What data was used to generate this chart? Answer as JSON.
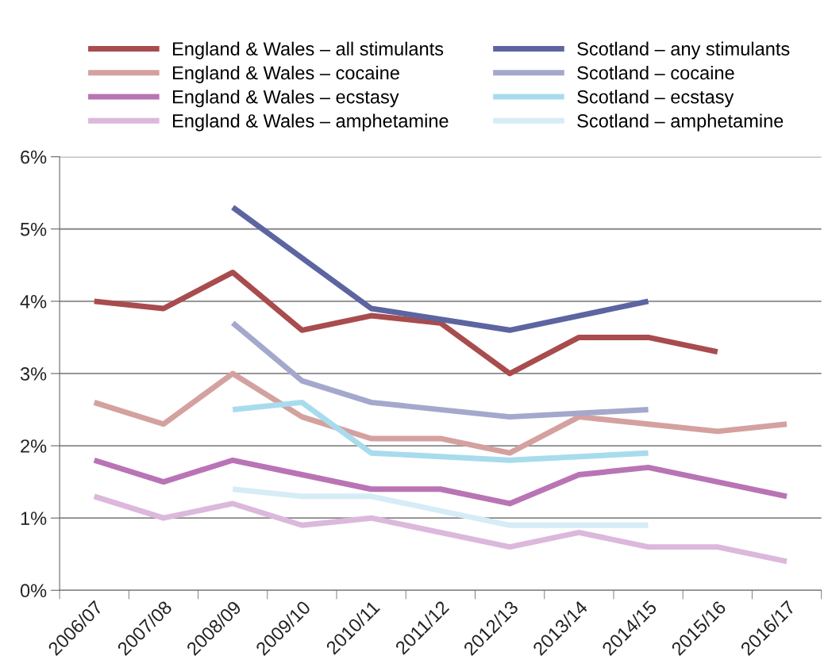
{
  "chart_data": {
    "type": "line",
    "categories": [
      "2006/07",
      "2007/08",
      "2008/09",
      "2009/10",
      "2010/11",
      "2011/12",
      "2012/13",
      "2013/14",
      "2014/15",
      "2015/16",
      "2016/17"
    ],
    "series": [
      {
        "name": "England & Wales – all stimulants",
        "color": "#a84c4e",
        "values": [
          4.0,
          3.9,
          4.4,
          3.6,
          3.8,
          3.7,
          3.0,
          3.5,
          3.5,
          3.3,
          null
        ]
      },
      {
        "name": "England & Wales – cocaine",
        "color": "#d4a19f",
        "values": [
          2.6,
          2.3,
          3.0,
          2.4,
          2.1,
          2.1,
          1.9,
          2.4,
          2.3,
          2.2,
          2.3
        ]
      },
      {
        "name": "England & Wales – ecstasy",
        "color": "#b974b5",
        "values": [
          1.8,
          1.5,
          1.8,
          1.6,
          1.4,
          1.4,
          1.2,
          1.6,
          1.7,
          1.5,
          1.3
        ]
      },
      {
        "name": "England & Wales – amphetamine",
        "color": "#dcb8dd",
        "values": [
          1.3,
          1.0,
          1.2,
          0.9,
          1.0,
          0.8,
          0.6,
          0.8,
          0.6,
          0.6,
          0.4
        ]
      },
      {
        "name": "Scotland – any stimulants",
        "color": "#5c65a0",
        "values": [
          null,
          null,
          5.3,
          4.6,
          3.9,
          null,
          3.6,
          null,
          4.0,
          null,
          null
        ]
      },
      {
        "name": "Scotland – cocaine",
        "color": "#a4a8cc",
        "values": [
          null,
          null,
          3.7,
          2.9,
          2.6,
          null,
          2.4,
          null,
          2.5,
          null,
          null
        ]
      },
      {
        "name": "Scotland – ecstasy",
        "color": "#a8dced",
        "values": [
          null,
          null,
          2.5,
          2.6,
          1.9,
          null,
          1.8,
          null,
          1.9,
          null,
          null
        ]
      },
      {
        "name": "Scotland – amphetamine",
        "color": "#d6ecf7",
        "values": [
          null,
          null,
          1.4,
          1.3,
          1.3,
          null,
          0.9,
          null,
          0.9,
          null,
          null
        ]
      }
    ],
    "ylim": [
      0,
      6
    ],
    "yticks": [
      {
        "value": 0,
        "label": "0%"
      },
      {
        "value": 1,
        "label": "1%"
      },
      {
        "value": 2,
        "label": "2%"
      },
      {
        "value": 3,
        "label": "3%"
      },
      {
        "value": 4,
        "label": "4%"
      },
      {
        "value": 5,
        "label": "5%"
      },
      {
        "value": 6,
        "label": "6%"
      }
    ],
    "grid": "y",
    "legend": "top",
    "marker": "none",
    "line_style": "solid"
  }
}
